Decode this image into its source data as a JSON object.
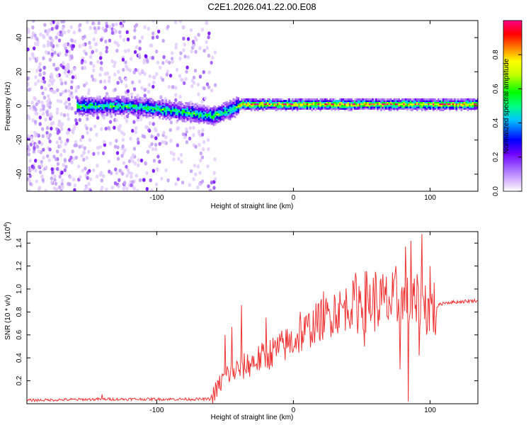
{
  "title": "C2E1.2026.041.22.00.E08",
  "colors": {
    "snr_line": "#ee3333",
    "axes": "#000000",
    "background": "#ffffff"
  },
  "chart_data": [
    {
      "type": "heatmap",
      "xlabel": "Height of straight line (km)",
      "ylabel": "Frequency (Hz)",
      "xlim": [
        -195,
        135
      ],
      "ylim": [
        -50,
        50
      ],
      "xticks": [
        -100,
        0,
        100
      ],
      "xtick_labels": [
        "-100",
        "0",
        "100"
      ],
      "yticks": [
        -40,
        -20,
        0,
        20,
        40
      ],
      "ytick_labels": [
        "-40",
        "-20",
        "0",
        "20",
        "40"
      ],
      "colorbar": {
        "label": "Normalized spectral amplitude",
        "range": [
          0,
          1
        ],
        "ticks": [
          0.0,
          0.2,
          0.4,
          0.6,
          0.8
        ],
        "tick_labels": [
          "0.0",
          "0.2",
          "0.4",
          "0.6",
          "0.8"
        ],
        "colormap": [
          "#ffffff",
          "#b57ff5",
          "#6f00ff",
          "#0000ff",
          "#00ffff",
          "#00ff00",
          "#ffff00",
          "#ff8000",
          "#ff0000",
          "#ff0080"
        ]
      },
      "ridge": [
        {
          "x": -155,
          "f": 0
        },
        {
          "x": -120,
          "f": 0
        },
        {
          "x": -95,
          "f": -2
        },
        {
          "x": -75,
          "f": -4
        },
        {
          "x": -60,
          "f": -6
        },
        {
          "x": -48,
          "f": -3
        },
        {
          "x": -38,
          "f": 1
        },
        {
          "x": 0,
          "f": 1
        },
        {
          "x": 135,
          "f": 1
        }
      ],
      "noise_region_x": [
        -195,
        -57
      ]
    },
    {
      "type": "line",
      "xlabel": "Height of straight line (km)",
      "ylabel": "SNR (10 * v/v)",
      "multiplier_label": "(x10",
      "multiplier_exp": "4",
      "multiplier_close": ")",
      "xlim": [
        -195,
        135
      ],
      "ylim": [
        0,
        1.5
      ],
      "xticks": [
        -100,
        0,
        100
      ],
      "xtick_labels": [
        "-100",
        "0",
        "100"
      ],
      "yticks": [
        0.2,
        0.4,
        0.6,
        0.8,
        1.0,
        1.2,
        1.4
      ],
      "ytick_labels": [
        "0.2",
        "0.4",
        "0.6",
        "0.8",
        "1.0",
        "1.2",
        "1.4"
      ],
      "series": [
        {
          "name": "SNR",
          "baseline": [
            {
              "x": -195,
              "y": 0.03
            },
            {
              "x": -140,
              "y": 0.04
            },
            {
              "x": -60,
              "y": 0.04
            },
            {
              "x": -50,
              "y": 0.25
            },
            {
              "x": -40,
              "y": 0.3
            },
            {
              "x": -20,
              "y": 0.42
            },
            {
              "x": 0,
              "y": 0.55
            },
            {
              "x": 20,
              "y": 0.73
            },
            {
              "x": 40,
              "y": 0.85
            },
            {
              "x": 50,
              "y": 0.9
            },
            {
              "x": 70,
              "y": 0.88
            },
            {
              "x": 90,
              "y": 0.85
            },
            {
              "x": 105,
              "y": 0.85
            },
            {
              "x": 110,
              "y": 0.88
            },
            {
              "x": 135,
              "y": 0.9
            }
          ],
          "peaks": [
            {
              "x": -140,
              "y": 0.08
            },
            {
              "x": -50,
              "y": 0.6
            },
            {
              "x": -45,
              "y": 0.67
            },
            {
              "x": -38,
              "y": 0.86
            },
            {
              "x": -20,
              "y": 0.75
            },
            {
              "x": 5,
              "y": 0.8
            },
            {
              "x": 22,
              "y": 0.98
            },
            {
              "x": 30,
              "y": 0.95
            },
            {
              "x": 45,
              "y": 1.05
            },
            {
              "x": 52,
              "y": 1.36
            },
            {
              "x": 60,
              "y": 1.15
            },
            {
              "x": 75,
              "y": 1.2
            },
            {
              "x": 82,
              "y": 1.37
            },
            {
              "x": 86,
              "y": 1.42
            },
            {
              "x": 94,
              "y": 1.48
            },
            {
              "x": 100,
              "y": 1.2
            }
          ],
          "troughs": [
            {
              "x": 52,
              "y": 0.5
            },
            {
              "x": 78,
              "y": 0.3
            },
            {
              "x": 84,
              "y": 0.02
            },
            {
              "x": 92,
              "y": 0.42
            },
            {
              "x": 104,
              "y": 0.6
            }
          ]
        }
      ]
    }
  ]
}
